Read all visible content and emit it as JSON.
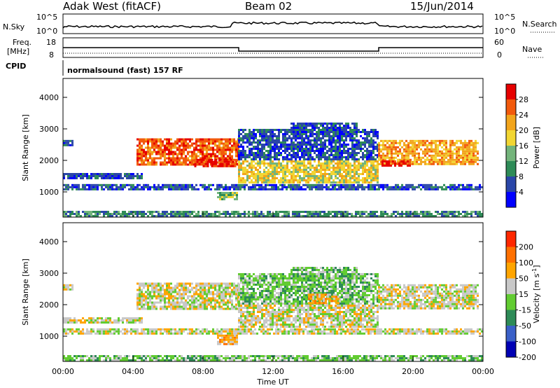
{
  "header": {
    "radar": "Adak West (fitACF)",
    "beam": "Beam 02",
    "date": "15/Jun/2014"
  },
  "strips": {
    "nsky_label": "N.Sky",
    "nsky_ticks": [
      "10^5",
      "10^0"
    ],
    "nsearch_label": "N.Search",
    "freq_label_1": "Freq.",
    "freq_label_2": "[MHz]",
    "freq_ticks": [
      "18",
      "8"
    ],
    "nave_label": "Nave",
    "nave_ticks": [
      "60",
      "0"
    ],
    "cpid_label": "CPID",
    "cpid_value": "normalsound (fast) 157 RF"
  },
  "colors": {
    "power": [
      "#0000ff",
      "#2a46a8",
      "#2e8b57",
      "#73b47b",
      "#f2d633",
      "#f2a51c",
      "#f25a0c",
      "#e60000"
    ],
    "velocity": [
      "#0000b4",
      "#3a60c8",
      "#2e8b57",
      "#62cc32",
      "#c8c8c8",
      "#ffa500",
      "#ff7000",
      "#ff2800"
    ]
  },
  "chart_data": [
    {
      "type": "heatmap",
      "panel": "power",
      "ylabel": "Slant Range [km]",
      "yticks": [
        "4000",
        "3000",
        "2000",
        "1000"
      ],
      "ylim": [
        200,
        4600
      ],
      "xlim": [
        0,
        24
      ],
      "colorbar_label": "Power [dB]",
      "colorbar_ticks": [
        "28",
        "24",
        "20",
        "16",
        "12",
        "8",
        "4"
      ],
      "features": [
        {
          "t0": 0.0,
          "t1": 0.6,
          "r0": 2480,
          "r1": 2650,
          "level": 1
        },
        {
          "t0": 4.2,
          "t1": 10.0,
          "r0": 1850,
          "r1": 2700,
          "level": 6
        },
        {
          "t0": 7.5,
          "t1": 10.0,
          "r0": 1800,
          "r1": 2050,
          "level": 7
        },
        {
          "t0": 0.0,
          "t1": 24.0,
          "r0": 1050,
          "r1": 1250,
          "level": 1
        },
        {
          "t0": 0.0,
          "t1": 4.5,
          "r0": 1450,
          "r1": 1600,
          "level": 1
        },
        {
          "t0": 8.8,
          "t1": 10.0,
          "r0": 750,
          "r1": 1000,
          "level": 3
        },
        {
          "t0": 10.0,
          "t1": 18.0,
          "r0": 1300,
          "r1": 2000,
          "level": 4
        },
        {
          "t0": 10.0,
          "t1": 18.0,
          "r0": 2000,
          "r1": 3000,
          "level": 1
        },
        {
          "t0": 13.0,
          "t1": 16.8,
          "r0": 2800,
          "r1": 3200,
          "level": 1
        },
        {
          "t0": 18.0,
          "t1": 23.7,
          "r0": 1900,
          "r1": 2650,
          "level": 5
        },
        {
          "t0": 18.2,
          "t1": 19.8,
          "r0": 1800,
          "r1": 2000,
          "level": 7
        },
        {
          "t0": 0.0,
          "t1": 24.0,
          "r0": 250,
          "r1": 400,
          "level": 2
        }
      ]
    },
    {
      "type": "heatmap",
      "panel": "velocity",
      "ylabel": "Slant Range [km]",
      "xlabel": "Time UT",
      "yticks": [
        "4000",
        "3000",
        "2000",
        "1000"
      ],
      "xticks": [
        "00:00",
        "04:00",
        "08:00",
        "12:00",
        "16:00",
        "20:00",
        "00:00"
      ],
      "ylim": [
        200,
        4600
      ],
      "xlim": [
        0,
        24
      ],
      "colorbar_label": "Velocity [m s^-1]",
      "colorbar_ticks": [
        "200",
        "100",
        "50",
        "15",
        "-15",
        "-50",
        "-100",
        "-200"
      ],
      "features": [
        {
          "t0": 0.0,
          "t1": 0.6,
          "r0": 2480,
          "r1": 2650,
          "level": 4
        },
        {
          "t0": 4.2,
          "t1": 10.0,
          "r0": 1850,
          "r1": 2700,
          "level": 4
        },
        {
          "t0": 0.0,
          "t1": 24.0,
          "r0": 1050,
          "r1": 1250,
          "level": 4
        },
        {
          "t0": 0.0,
          "t1": 4.5,
          "r0": 1450,
          "r1": 1600,
          "level": 4
        },
        {
          "t0": 8.8,
          "t1": 10.0,
          "r0": 750,
          "r1": 1050,
          "level": 5
        },
        {
          "t0": 10.0,
          "t1": 18.0,
          "r0": 1300,
          "r1": 2000,
          "level": 4
        },
        {
          "t0": 10.0,
          "t1": 18.0,
          "r0": 2000,
          "r1": 3000,
          "level": 3
        },
        {
          "t0": 14.0,
          "t1": 15.8,
          "r0": 2050,
          "r1": 2350,
          "level": 5
        },
        {
          "t0": 13.0,
          "t1": 16.8,
          "r0": 2800,
          "r1": 3200,
          "level": 3
        },
        {
          "t0": 18.0,
          "t1": 23.7,
          "r0": 1900,
          "r1": 2650,
          "level": 4
        },
        {
          "t0": 0.0,
          "t1": 24.0,
          "r0": 250,
          "r1": 400,
          "level": 3
        }
      ]
    }
  ]
}
